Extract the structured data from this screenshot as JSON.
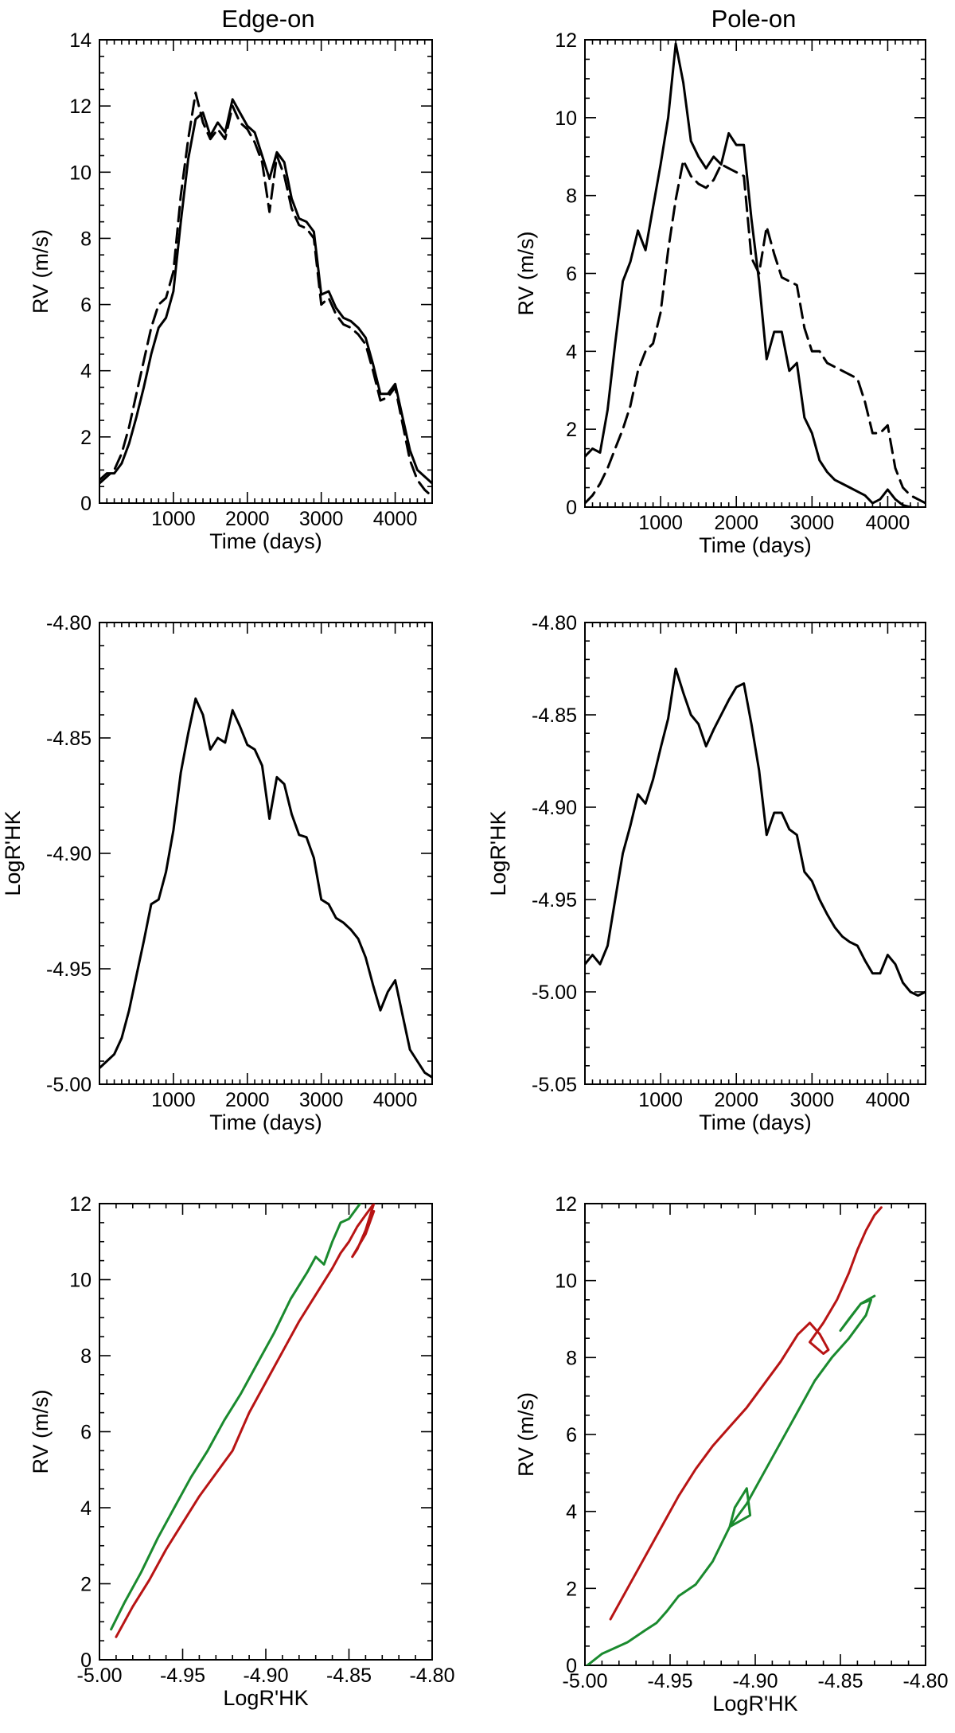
{
  "columns": [
    {
      "title": "Edge-on"
    },
    {
      "title": "Pole-on"
    }
  ],
  "colors": {
    "black": "#000000",
    "green": "#1a8a2e",
    "red": "#b81414"
  },
  "chart_data": [
    {
      "id": "rv-edge",
      "type": "line",
      "title": "",
      "xlabel": "Time (days)",
      "ylabel": "RV (m/s)",
      "xlim": [
        0,
        4500
      ],
      "ylim": [
        0,
        14
      ],
      "xticks": [
        1000,
        2000,
        3000,
        4000
      ],
      "xtick_labels": [
        "1000",
        "2000",
        "3000",
        "4000"
      ],
      "yticks": [
        0,
        2,
        4,
        6,
        8,
        10,
        12,
        14
      ],
      "ytick_labels": [
        "0",
        "2",
        "4",
        "6",
        "8",
        "10",
        "12",
        "14"
      ],
      "grid": false,
      "series": [
        {
          "style": "solid",
          "color": "#000000",
          "x": [
            0,
            100,
            200,
            300,
            400,
            500,
            600,
            700,
            800,
            900,
            1000,
            1100,
            1200,
            1300,
            1400,
            1500,
            1600,
            1700,
            1800,
            1900,
            2000,
            2100,
            2200,
            2300,
            2400,
            2500,
            2600,
            2700,
            2800,
            2900,
            3000,
            3100,
            3200,
            3300,
            3400,
            3500,
            3600,
            3700,
            3800,
            3900,
            4000,
            4100,
            4200,
            4300,
            4400,
            4500
          ],
          "y": [
            0.7,
            0.9,
            0.9,
            1.2,
            1.8,
            2.6,
            3.5,
            4.5,
            5.3,
            5.6,
            6.4,
            8.5,
            10.4,
            11.6,
            11.8,
            11.1,
            11.5,
            11.2,
            12.2,
            11.8,
            11.4,
            11.2,
            10.5,
            9.8,
            10.6,
            10.3,
            9.2,
            8.6,
            8.5,
            8.2,
            6.3,
            6.4,
            5.9,
            5.6,
            5.5,
            5.3,
            5.0,
            4.2,
            3.3,
            3.3,
            3.6,
            2.6,
            1.6,
            1.0,
            0.8,
            0.6
          ]
        },
        {
          "style": "dashed",
          "color": "#000000",
          "x": [
            0,
            100,
            200,
            300,
            400,
            500,
            600,
            700,
            800,
            900,
            1000,
            1100,
            1200,
            1300,
            1400,
            1500,
            1600,
            1700,
            1800,
            1900,
            2000,
            2100,
            2200,
            2300,
            2400,
            2500,
            2600,
            2700,
            2800,
            2900,
            3000,
            3100,
            3200,
            3300,
            3400,
            3500,
            3600,
            3700,
            3800,
            3900,
            4000,
            4100,
            4200,
            4300,
            4400,
            4500
          ],
          "y": [
            0.6,
            0.8,
            1.0,
            1.5,
            2.3,
            3.3,
            4.3,
            5.3,
            6.0,
            6.2,
            7.0,
            9.3,
            11.0,
            12.4,
            11.5,
            11.0,
            11.3,
            11.0,
            12.0,
            11.5,
            11.3,
            10.9,
            10.3,
            8.8,
            10.5,
            9.9,
            8.9,
            8.4,
            8.3,
            8.0,
            6.0,
            6.2,
            5.7,
            5.4,
            5.3,
            5.1,
            4.8,
            4.0,
            3.1,
            3.2,
            3.5,
            2.4,
            1.3,
            0.7,
            0.4,
            0.2
          ]
        }
      ]
    },
    {
      "id": "rv-pole",
      "type": "line",
      "title": "",
      "xlabel": "Time (days)",
      "ylabel": "RV (m/s)",
      "xlim": [
        0,
        4500
      ],
      "ylim": [
        0,
        12
      ],
      "xticks": [
        1000,
        2000,
        3000,
        4000
      ],
      "xtick_labels": [
        "1000",
        "2000",
        "3000",
        "4000"
      ],
      "yticks": [
        0,
        2,
        4,
        6,
        8,
        10,
        12
      ],
      "ytick_labels": [
        "0",
        "2",
        "4",
        "6",
        "8",
        "10",
        "12"
      ],
      "grid": false,
      "series": [
        {
          "style": "solid",
          "color": "#000000",
          "x": [
            0,
            100,
            200,
            300,
            400,
            500,
            600,
            700,
            800,
            900,
            1000,
            1100,
            1200,
            1300,
            1400,
            1500,
            1600,
            1700,
            1800,
            1900,
            2000,
            2100,
            2200,
            2300,
            2400,
            2500,
            2600,
            2700,
            2800,
            2900,
            3000,
            3100,
            3200,
            3300,
            3400,
            3500,
            3600,
            3700,
            3800,
            3900,
            4000,
            4100,
            4200,
            4300,
            4400,
            4500
          ],
          "y": [
            1.3,
            1.5,
            1.4,
            2.5,
            4.2,
            5.8,
            6.3,
            7.1,
            6.6,
            7.7,
            8.8,
            10.0,
            11.9,
            10.9,
            9.4,
            9.0,
            8.7,
            9.0,
            8.8,
            9.6,
            9.3,
            9.3,
            7.4,
            5.8,
            3.8,
            4.5,
            4.5,
            3.5,
            3.7,
            2.3,
            1.9,
            1.2,
            0.9,
            0.7,
            0.6,
            0.5,
            0.4,
            0.3,
            0.1,
            0.2,
            0.45,
            0.2,
            0.05,
            0.0,
            -0.05,
            -0.05
          ]
        },
        {
          "style": "dashed",
          "color": "#000000",
          "x": [
            0,
            100,
            200,
            300,
            400,
            500,
            600,
            700,
            800,
            900,
            1000,
            1100,
            1200,
            1300,
            1400,
            1500,
            1600,
            1700,
            1800,
            1900,
            2000,
            2100,
            2200,
            2300,
            2400,
            2500,
            2600,
            2700,
            2800,
            2900,
            3000,
            3100,
            3200,
            3300,
            3400,
            3500,
            3600,
            3700,
            3800,
            3900,
            4000,
            4100,
            4200,
            4300,
            4400,
            4500
          ],
          "y": [
            0.1,
            0.3,
            0.6,
            1.0,
            1.5,
            2.0,
            2.6,
            3.5,
            4.0,
            4.2,
            5.0,
            6.6,
            7.9,
            8.9,
            8.5,
            8.3,
            8.2,
            8.4,
            8.8,
            8.7,
            8.6,
            8.5,
            6.4,
            6.0,
            7.2,
            6.5,
            5.9,
            5.8,
            5.7,
            4.6,
            4.0,
            4.0,
            3.7,
            3.6,
            3.5,
            3.4,
            3.3,
            2.7,
            1.9,
            1.9,
            2.1,
            1.0,
            0.5,
            0.3,
            0.2,
            0.1
          ]
        }
      ]
    },
    {
      "id": "hk-edge",
      "type": "line",
      "title": "",
      "xlabel": "Time (days)",
      "ylabel": "LogR'HK",
      "xlim": [
        0,
        4500
      ],
      "ylim": [
        -5.0,
        -4.8
      ],
      "xticks": [
        1000,
        2000,
        3000,
        4000
      ],
      "xtick_labels": [
        "1000",
        "2000",
        "3000",
        "4000"
      ],
      "yticks": [
        -5.0,
        -4.95,
        -4.9,
        -4.85,
        -4.8
      ],
      "ytick_labels": [
        "-5.00",
        "-4.95",
        "-4.90",
        "-4.85",
        "-4.80"
      ],
      "grid": false,
      "series": [
        {
          "style": "solid",
          "color": "#000000",
          "x": [
            0,
            100,
            200,
            300,
            400,
            500,
            600,
            700,
            800,
            900,
            1000,
            1100,
            1200,
            1300,
            1400,
            1500,
            1600,
            1700,
            1800,
            1900,
            2000,
            2100,
            2200,
            2300,
            2400,
            2500,
            2600,
            2700,
            2800,
            2900,
            3000,
            3100,
            3200,
            3300,
            3400,
            3500,
            3600,
            3700,
            3800,
            3900,
            4000,
            4100,
            4200,
            4300,
            4400,
            4500
          ],
          "y": [
            -4.993,
            -4.99,
            -4.987,
            -4.98,
            -4.968,
            -4.953,
            -4.938,
            -4.922,
            -4.92,
            -4.908,
            -4.89,
            -4.865,
            -4.848,
            -4.833,
            -4.84,
            -4.855,
            -4.85,
            -4.852,
            -4.838,
            -4.845,
            -4.853,
            -4.855,
            -4.862,
            -4.885,
            -4.867,
            -4.87,
            -4.883,
            -4.892,
            -4.893,
            -4.902,
            -4.92,
            -4.922,
            -4.928,
            -4.93,
            -4.933,
            -4.937,
            -4.945,
            -4.957,
            -4.968,
            -4.96,
            -4.955,
            -4.97,
            -4.985,
            -4.99,
            -4.995,
            -4.997
          ]
        }
      ]
    },
    {
      "id": "hk-pole",
      "type": "line",
      "title": "",
      "xlabel": "Time (days)",
      "ylabel": "LogR'HK",
      "xlim": [
        0,
        4500
      ],
      "ylim": [
        -5.05,
        -4.8
      ],
      "xticks": [
        1000,
        2000,
        3000,
        4000
      ],
      "xtick_labels": [
        "1000",
        "2000",
        "3000",
        "4000"
      ],
      "yticks": [
        -5.05,
        -5.0,
        -4.95,
        -4.9,
        -4.85,
        -4.8
      ],
      "ytick_labels": [
        "-5.05",
        "-5.00",
        "-4.95",
        "-4.90",
        "-4.85",
        "-4.80"
      ],
      "grid": false,
      "series": [
        {
          "style": "solid",
          "color": "#000000",
          "x": [
            0,
            100,
            200,
            300,
            400,
            500,
            600,
            700,
            800,
            900,
            1000,
            1100,
            1200,
            1300,
            1400,
            1500,
            1600,
            1700,
            1800,
            1900,
            2000,
            2100,
            2200,
            2300,
            2400,
            2500,
            2600,
            2700,
            2800,
            2900,
            3000,
            3100,
            3200,
            3300,
            3400,
            3500,
            3600,
            3700,
            3800,
            3900,
            4000,
            4100,
            4200,
            4300,
            4400,
            4500
          ],
          "y": [
            -4.985,
            -4.98,
            -4.985,
            -4.975,
            -4.95,
            -4.925,
            -4.91,
            -4.893,
            -4.898,
            -4.885,
            -4.868,
            -4.852,
            -4.825,
            -4.838,
            -4.85,
            -4.855,
            -4.867,
            -4.858,
            -4.85,
            -4.842,
            -4.835,
            -4.833,
            -4.855,
            -4.88,
            -4.915,
            -4.903,
            -4.903,
            -4.912,
            -4.915,
            -4.935,
            -4.94,
            -4.95,
            -4.958,
            -4.965,
            -4.97,
            -4.973,
            -4.975,
            -4.983,
            -4.99,
            -4.99,
            -4.98,
            -4.985,
            -4.995,
            -5.0,
            -5.002,
            -5.0
          ]
        }
      ]
    },
    {
      "id": "rv-vs-hk-edge",
      "type": "line",
      "title": "",
      "xlabel": "LogR'HK",
      "ylabel": "RV (m/s)",
      "xlim": [
        -5.0,
        -4.8
      ],
      "ylim": [
        0,
        12
      ],
      "xticks": [
        -5.0,
        -4.95,
        -4.9,
        -4.85,
        -4.8
      ],
      "xtick_labels": [
        "-5.00",
        "-4.95",
        "-4.90",
        "-4.85",
        "-4.80"
      ],
      "yticks": [
        0,
        2,
        4,
        6,
        8,
        10,
        12
      ],
      "ytick_labels": [
        "0",
        "2",
        "4",
        "6",
        "8",
        "10",
        "12"
      ],
      "grid": false,
      "series": [
        {
          "style": "solid",
          "color": "#1a8a2e",
          "x": [
            -4.993,
            -4.985,
            -4.975,
            -4.965,
            -4.955,
            -4.945,
            -4.935,
            -4.925,
            -4.915,
            -4.905,
            -4.895,
            -4.885,
            -4.875,
            -4.87,
            -4.865,
            -4.86,
            -4.855,
            -4.85,
            -4.845,
            -4.84
          ],
          "y": [
            0.8,
            1.5,
            2.3,
            3.2,
            4.0,
            4.8,
            5.5,
            6.3,
            7.0,
            7.8,
            8.6,
            9.5,
            10.2,
            10.6,
            10.4,
            11.0,
            11.5,
            11.6,
            11.9,
            12.2
          ]
        },
        {
          "style": "solid",
          "color": "#b81414",
          "x": [
            -4.99,
            -4.98,
            -4.97,
            -4.96,
            -4.95,
            -4.94,
            -4.93,
            -4.92,
            -4.915,
            -4.91,
            -4.9,
            -4.89,
            -4.88,
            -4.87,
            -4.86,
            -4.855,
            -4.85,
            -4.845,
            -4.84,
            -4.835,
            -4.84,
            -4.845,
            -4.848,
            -4.84,
            -4.835
          ],
          "y": [
            0.6,
            1.4,
            2.1,
            2.9,
            3.6,
            4.3,
            4.9,
            5.5,
            6.0,
            6.5,
            7.3,
            8.1,
            8.9,
            9.6,
            10.3,
            10.7,
            11.0,
            11.4,
            11.7,
            12.0,
            11.3,
            10.8,
            10.6,
            11.2,
            11.8
          ]
        }
      ]
    },
    {
      "id": "rv-vs-hk-pole",
      "type": "line",
      "title": "",
      "xlabel": "LogR'HK",
      "ylabel": "RV (m/s)",
      "xlim": [
        -5.0,
        -4.8
      ],
      "ylim": [
        0,
        12
      ],
      "xticks": [
        -5.0,
        -4.95,
        -4.9,
        -4.85,
        -4.8
      ],
      "xtick_labels": [
        "-5.00",
        "-4.95",
        "-4.90",
        "-4.85",
        "-4.80"
      ],
      "yticks": [
        0,
        2,
        4,
        6,
        8,
        10,
        12
      ],
      "ytick_labels": [
        "0",
        "2",
        "4",
        "6",
        "8",
        "10",
        "12"
      ],
      "grid": false,
      "series": [
        {
          "style": "solid",
          "color": "#1a8a2e",
          "x": [
            -5.0,
            -4.99,
            -4.975,
            -4.965,
            -4.958,
            -4.952,
            -4.945,
            -4.935,
            -4.925,
            -4.915,
            -4.912,
            -4.905,
            -4.903,
            -4.915,
            -4.905,
            -4.895,
            -4.885,
            -4.875,
            -4.865,
            -4.855,
            -4.845,
            -4.84,
            -4.835,
            -4.832,
            -4.838,
            -4.85,
            -4.845,
            -4.838,
            -4.83
          ],
          "y": [
            -0.05,
            0.3,
            0.6,
            0.9,
            1.1,
            1.4,
            1.8,
            2.1,
            2.7,
            3.6,
            4.1,
            4.6,
            3.9,
            3.6,
            4.2,
            5.0,
            5.8,
            6.6,
            7.4,
            8.0,
            8.5,
            8.8,
            9.1,
            9.5,
            9.4,
            8.7,
            9.0,
            9.4,
            9.6
          ]
        },
        {
          "style": "solid",
          "color": "#b81414",
          "x": [
            -4.985,
            -4.975,
            -4.965,
            -4.955,
            -4.945,
            -4.935,
            -4.925,
            -4.915,
            -4.905,
            -4.895,
            -4.885,
            -4.875,
            -4.868,
            -4.862,
            -4.857,
            -4.86,
            -4.868,
            -4.86,
            -4.852,
            -4.845,
            -4.84,
            -4.835,
            -4.83,
            -4.826
          ],
          "y": [
            1.2,
            2.0,
            2.8,
            3.6,
            4.4,
            5.1,
            5.7,
            6.2,
            6.7,
            7.3,
            7.9,
            8.6,
            8.9,
            8.6,
            8.2,
            8.1,
            8.4,
            8.9,
            9.5,
            10.2,
            10.8,
            11.3,
            11.7,
            11.9
          ]
        }
      ]
    }
  ]
}
